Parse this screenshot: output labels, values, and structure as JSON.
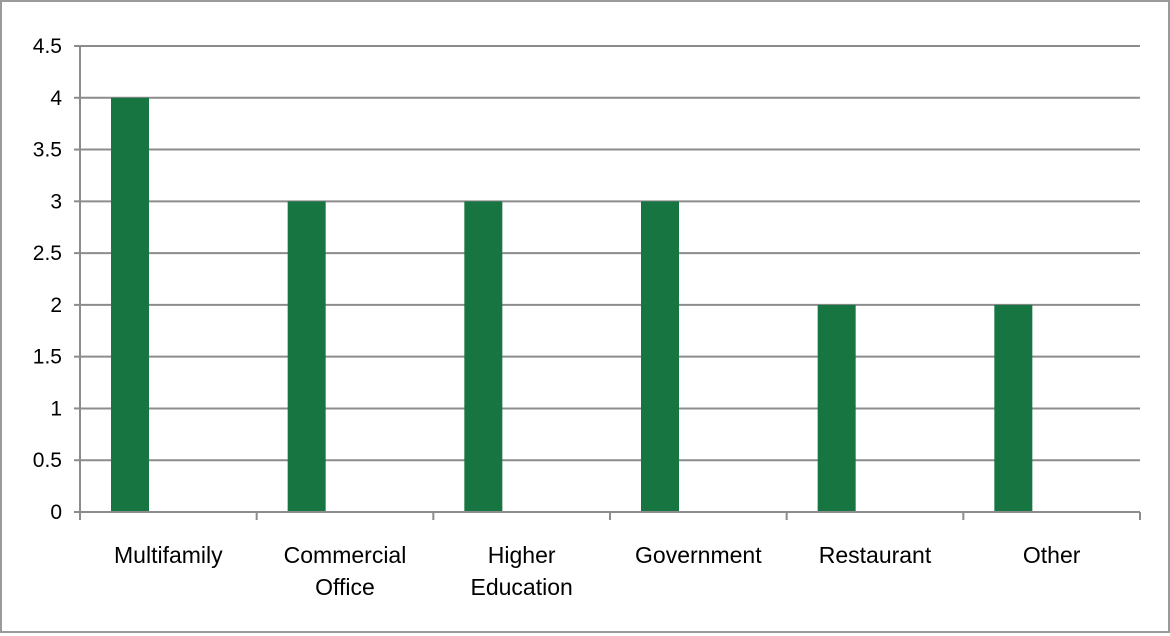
{
  "chart_data": {
    "type": "bar",
    "categories": [
      [
        "Multifamily"
      ],
      [
        "Commercial",
        "Office"
      ],
      [
        "Higher",
        "Education"
      ],
      [
        "Government"
      ],
      [
        "Restaurant"
      ],
      [
        "Other"
      ]
    ],
    "values": [
      4,
      3,
      3,
      3,
      2,
      2
    ],
    "ylim": [
      0,
      4.5
    ],
    "yticks": [
      "0",
      "0.5",
      "1",
      "1.5",
      "2",
      "2.5",
      "3",
      "3.5",
      "4",
      "4.5"
    ],
    "grid": true,
    "legend": "none",
    "colors": {
      "bar": "#177541",
      "grid": "#8c8c8c",
      "axis": "#8c8c8c",
      "frame": "#9a9a9a"
    }
  }
}
